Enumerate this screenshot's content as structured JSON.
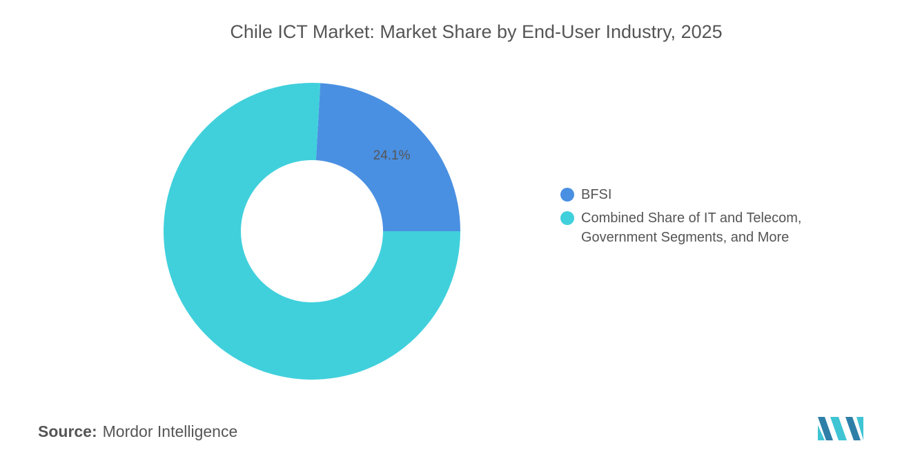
{
  "chart_data": {
    "type": "donut",
    "title": "Chile ICT Market: Market Share by End-User Industry, 2025",
    "categories": [
      "BFSI",
      "Combined Share of IT and Telecom, Government Segments, and More"
    ],
    "values": [
      24.1,
      75.9
    ],
    "value_labels": [
      "24.1%",
      null
    ],
    "colors": [
      "#4a90e2",
      "#40d0dc"
    ],
    "legend": "right",
    "source_label": "Source:",
    "source": "Mordor Intelligence"
  }
}
